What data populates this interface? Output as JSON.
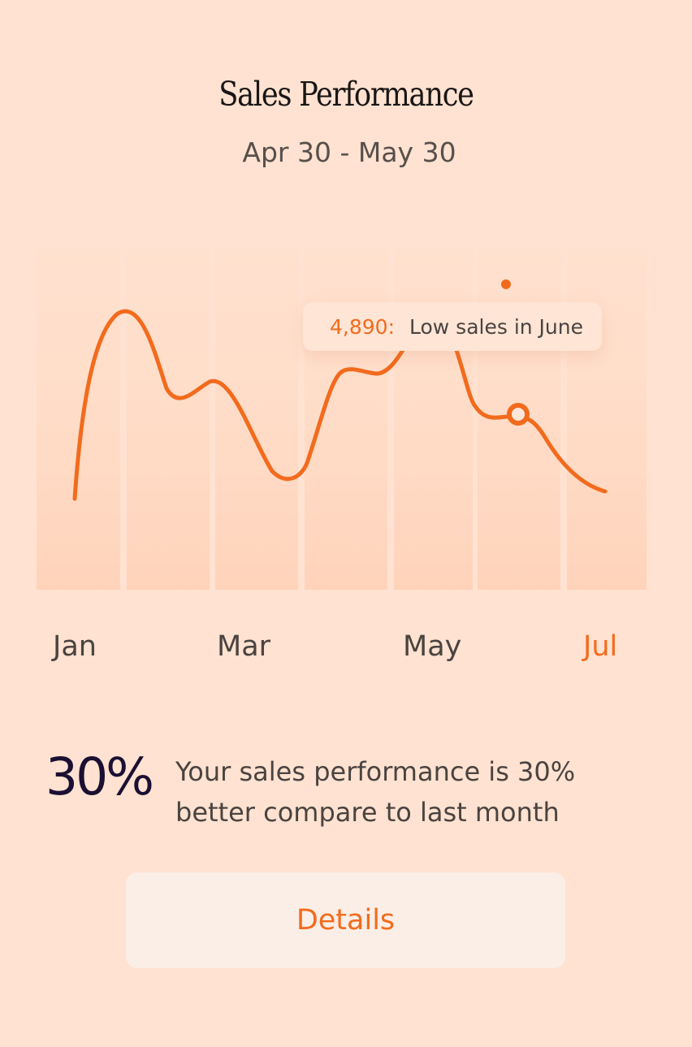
{
  "header": {
    "title": "Sales Performance",
    "date_range": "Apr 30 - May 30"
  },
  "tooltip": {
    "value": "4,890:",
    "label": "Low sales in June"
  },
  "x_axis_labels": [
    "Jan",
    "Mar",
    "May",
    "Jul"
  ],
  "summary": {
    "percent": "30%",
    "text": "Your sales performance is 30% better compare to last month"
  },
  "details_button": {
    "label": "Details"
  },
  "colors": {
    "accent": "#f26b1d",
    "background": "#ffe2d1",
    "text": "#4a4340",
    "percent": "#1b1033"
  }
}
